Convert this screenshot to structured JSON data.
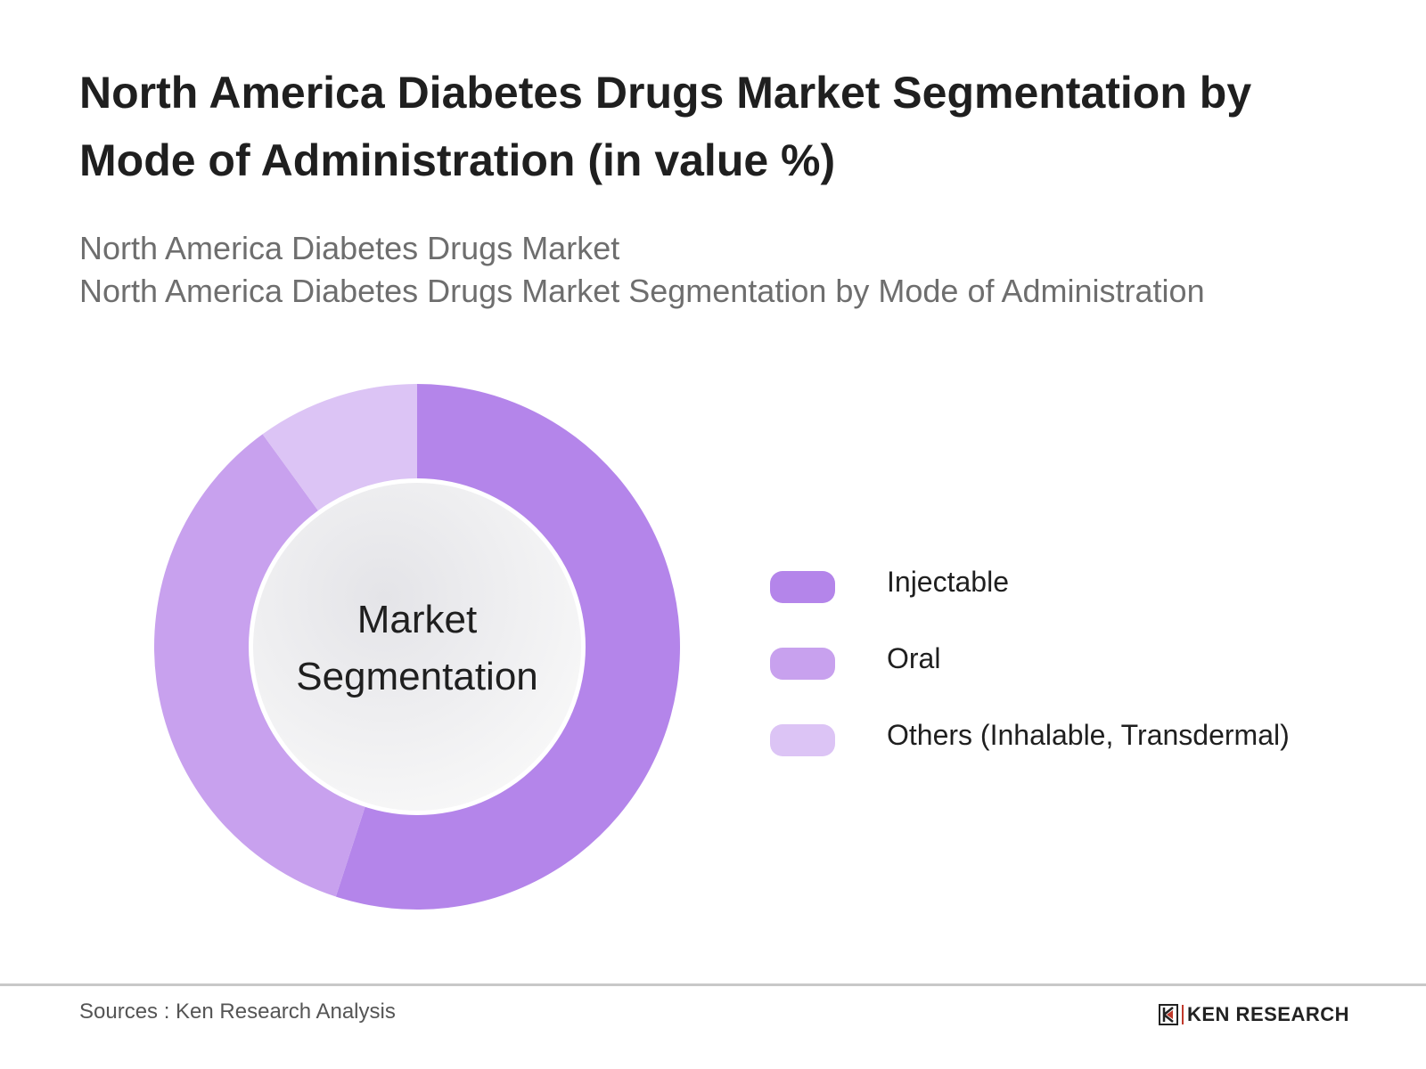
{
  "chart_data": {
    "type": "pie",
    "title": "North America Diabetes Drugs Market Segmentation by Mode of Administration (in value %)",
    "subtitle_1": "North America Diabetes Drugs Market",
    "subtitle_2": "North America Diabetes Drugs Market Segmentation by Mode of Administration",
    "center_label_1": "Market",
    "center_label_2": "Segmentation",
    "legend_position": "right",
    "categories": [
      "Injectable",
      "Oral",
      "Others (Inhalable, Transdermal)"
    ],
    "values": [
      55,
      35,
      10
    ],
    "colors": [
      "#b485ea",
      "#c8a1ee",
      "#dcc4f5"
    ]
  },
  "footer": {
    "source": "Sources : Ken Research Analysis",
    "logo_text": "KEN RESEARCH"
  }
}
